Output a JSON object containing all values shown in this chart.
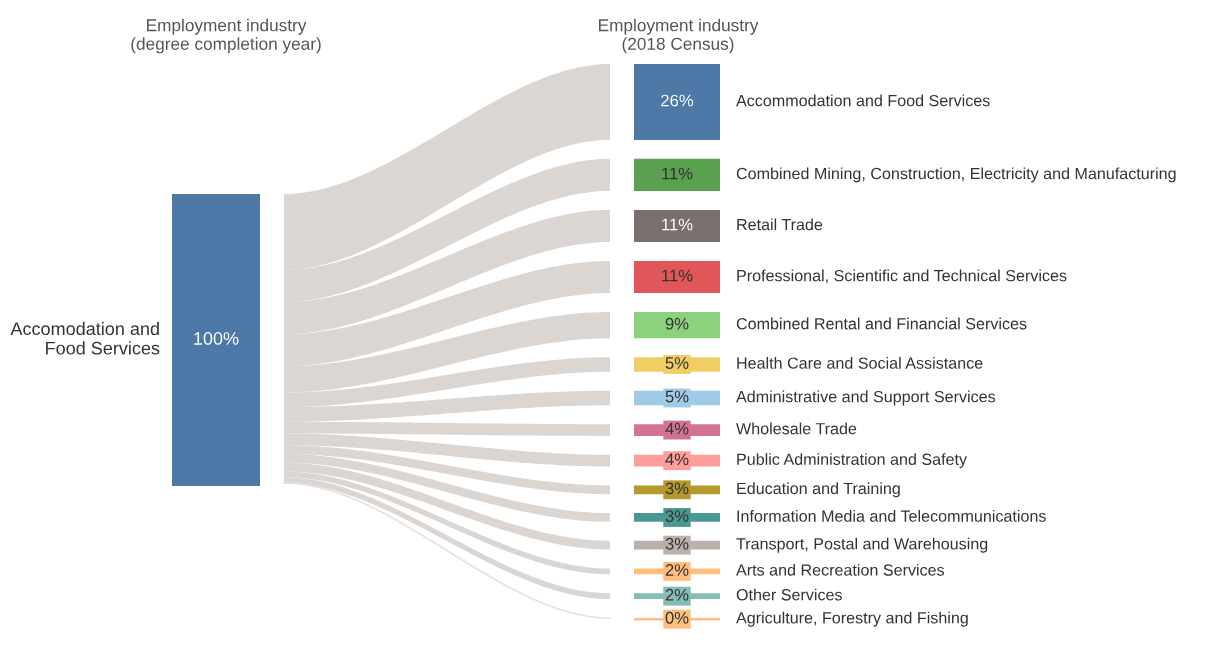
{
  "chart_data": {
    "type": "other",
    "annotations": [
      "Employment industry\n(degree completion year)",
      "Employment industry\n(2018 Census)"
    ],
    "categories": [
      "Accomodation and\nFood Services",
      "Accommodation and Food Services",
      "Combined Mining, Construction, Electricity and Manufacturing",
      "Retail Trade",
      "Professional, Scientific and Technical Services",
      "Combined Rental and Financial Services",
      "Health Care and Social Assistance",
      "Administrative and Support Services",
      "Wholesale Trade",
      "Public Administration and Safety",
      "Education and Training",
      "Information Media and Telecommunications",
      "Transport, Postal and Warehousing",
      "Arts and Recreation Services",
      "Other Services",
      "Agriculture, Forestry and Fishing"
    ],
    "values": [
      100,
      26,
      11,
      11,
      11,
      9,
      5,
      5,
      4,
      4,
      3,
      3,
      3,
      2,
      2,
      0
    ],
    "value_labels": [
      "100%",
      "26%",
      "11%",
      "11%",
      "11%",
      "9%",
      "5%",
      "5%",
      "4%",
      "4%",
      "3%",
      "3%",
      "3%",
      "2%",
      "2%",
      "0%"
    ],
    "colors": [
      "#4e79a7",
      "#4e79a7",
      "#59a14f",
      "#79706e",
      "#e15759",
      "#8cd17d",
      "#f1ce63",
      "#a0cbe8",
      "#d37295",
      "#ff9d9a",
      "#b6992d",
      "#499894",
      "#bab0ac",
      "#ffbe7d",
      "#86bcb6",
      "#ffbe7d"
    ]
  }
}
